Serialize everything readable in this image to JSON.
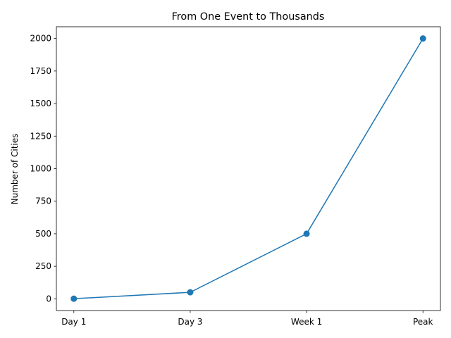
{
  "chart_data": {
    "type": "line",
    "title": "From One Event to Thousands",
    "xlabel": "",
    "ylabel": "Number of Cities",
    "categories": [
      "Day 1",
      "Day 3",
      "Week 1",
      "Peak"
    ],
    "series": [
      {
        "values": [
          1,
          50,
          500,
          2000
        ],
        "color": "#1f77b4",
        "marker": "circle"
      }
    ],
    "ylim": [
      -90,
      2090
    ],
    "yticks": [
      0,
      250,
      500,
      750,
      1000,
      1250,
      1500,
      1750,
      2000
    ],
    "grid": false,
    "legend": "none"
  }
}
